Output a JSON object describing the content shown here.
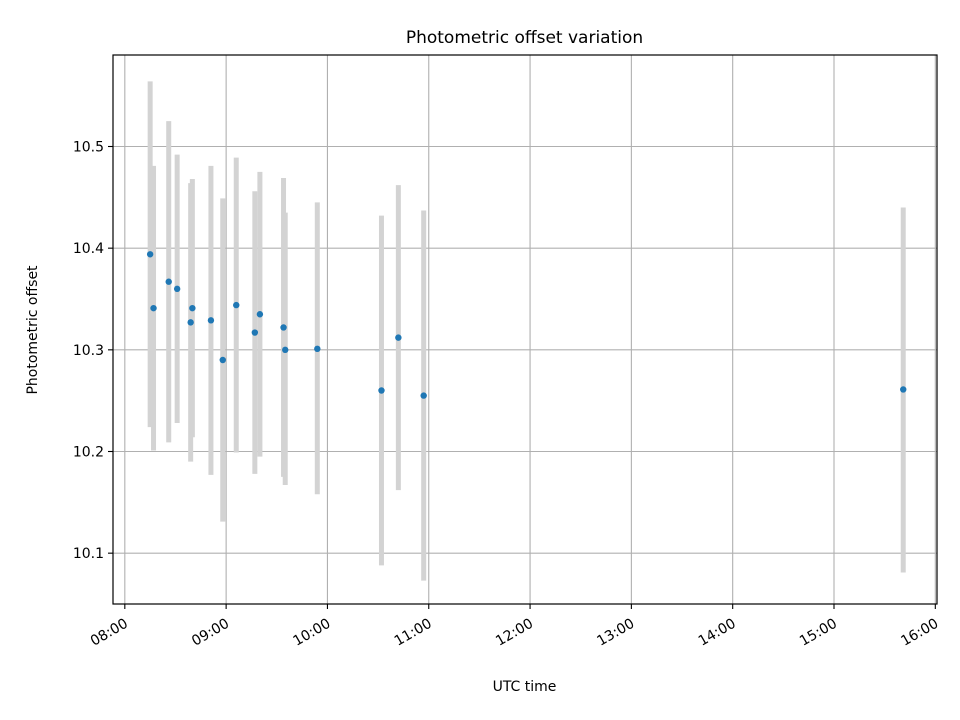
{
  "chart_data": {
    "type": "scatter",
    "title": "Photometric offset variation",
    "xlabel": "UTC time",
    "ylabel": "Photometric offset",
    "x_ticks": [
      "08:00",
      "09:00",
      "10:00",
      "11:00",
      "12:00",
      "13:00",
      "14:00",
      "15:00",
      "16:00"
    ],
    "y_ticks": [
      "10.1",
      "10.2",
      "10.3",
      "10.4",
      "10.5"
    ],
    "xlim": [
      "07:53",
      "16:01"
    ],
    "ylim": [
      10.05,
      10.59
    ],
    "grid": true,
    "colors": {
      "point": "#1f77b4",
      "errorbar": "#d3d3d3",
      "grid": "#b0b0b0"
    },
    "points": [
      {
        "x": "08:15",
        "y": 10.394,
        "err_low": 10.224,
        "err_high": 10.564
      },
      {
        "x": "08:17",
        "y": 10.341,
        "err_low": 10.201,
        "err_high": 10.481
      },
      {
        "x": "08:26",
        "y": 10.367,
        "err_low": 10.209,
        "err_high": 10.525
      },
      {
        "x": "08:31",
        "y": 10.36,
        "err_low": 10.228,
        "err_high": 10.492
      },
      {
        "x": "08:39",
        "y": 10.327,
        "err_low": 10.19,
        "err_high": 10.464
      },
      {
        "x": "08:40",
        "y": 10.341,
        "err_low": 10.214,
        "err_high": 10.468
      },
      {
        "x": "08:51",
        "y": 10.329,
        "err_low": 10.177,
        "err_high": 10.481
      },
      {
        "x": "08:58",
        "y": 10.29,
        "err_low": 10.131,
        "err_high": 10.449
      },
      {
        "x": "09:06",
        "y": 10.344,
        "err_low": 10.199,
        "err_high": 10.489
      },
      {
        "x": "09:17",
        "y": 10.317,
        "err_low": 10.178,
        "err_high": 10.456
      },
      {
        "x": "09:20",
        "y": 10.335,
        "err_low": 10.195,
        "err_high": 10.475
      },
      {
        "x": "09:34",
        "y": 10.322,
        "err_low": 10.175,
        "err_high": 10.469
      },
      {
        "x": "09:35",
        "y": 10.3,
        "err_low": 10.167,
        "err_high": 10.435
      },
      {
        "x": "09:54",
        "y": 10.301,
        "err_low": 10.158,
        "err_high": 10.445
      },
      {
        "x": "10:32",
        "y": 10.26,
        "err_low": 10.088,
        "err_high": 10.432
      },
      {
        "x": "10:42",
        "y": 10.312,
        "err_low": 10.162,
        "err_high": 10.462
      },
      {
        "x": "10:57",
        "y": 10.255,
        "err_low": 10.073,
        "err_high": 10.437
      },
      {
        "x": "15:41",
        "y": 10.261,
        "err_low": 10.081,
        "err_high": 10.44
      }
    ]
  }
}
